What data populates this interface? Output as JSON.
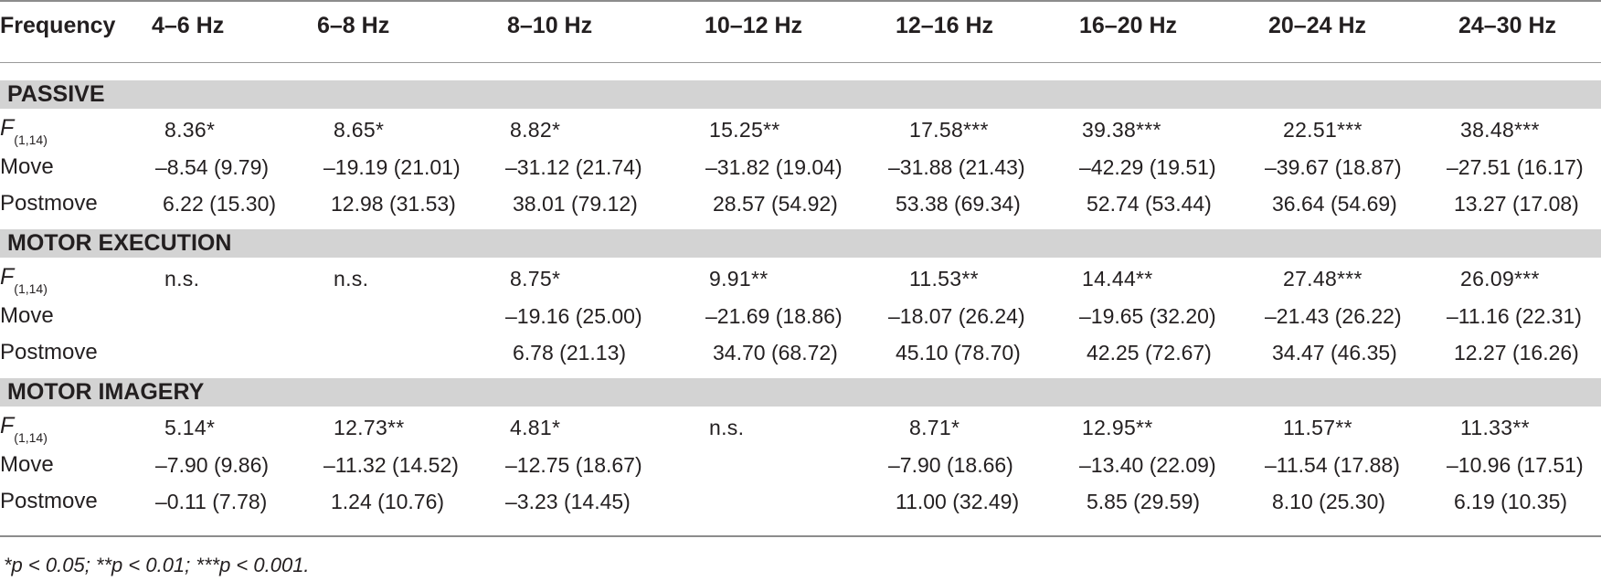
{
  "header": {
    "frequency_label": "Frequency",
    "bands": [
      "4–6 Hz",
      "6–8 Hz",
      "8–10 Hz",
      "10–12 Hz",
      "12–16 Hz",
      "16–20 Hz",
      "20–24 Hz",
      "24–30 Hz"
    ]
  },
  "row_labels": {
    "f_letter": "F",
    "f_subscript": "(1,14)",
    "move": "Move",
    "postmove": "Postmove"
  },
  "sections": [
    {
      "name": "PASSIVE",
      "f": [
        "8.36*",
        "8.65*",
        "8.82*",
        "15.25**",
        "17.58***",
        "39.38***",
        "22.51***",
        "38.48***"
      ],
      "move": [
        "–8.54 (9.79)",
        "–19.19 (21.01)",
        "–31.12 (21.74)",
        "–31.82 (19.04)",
        "–31.88 (21.43)",
        "–42.29 (19.51)",
        "–39.67 (18.87)",
        "–27.51 (16.17)"
      ],
      "postmove": [
        "6.22 (15.30)",
        "12.98 (31.53)",
        "38.01 (79.12)",
        "28.57 (54.92)",
        "53.38 (69.34)",
        "52.74 (53.44)",
        "36.64 (54.69)",
        "13.27 (17.08)"
      ]
    },
    {
      "name": "MOTOR EXECUTION",
      "f": [
        "n.s.",
        "n.s.",
        "8.75*",
        "9.91**",
        "11.53**",
        "14.44**",
        "27.48***",
        "26.09***"
      ],
      "move": [
        "",
        "",
        "–19.16 (25.00)",
        "–21.69 (18.86)",
        "–18.07 (26.24)",
        "–19.65 (32.20)",
        "–21.43 (26.22)",
        "–11.16 (22.31)"
      ],
      "postmove": [
        "",
        "",
        "6.78 (21.13)",
        "34.70 (68.72)",
        "45.10 (78.70)",
        "42.25 (72.67)",
        "34.47 (46.35)",
        "12.27 (16.26)"
      ]
    },
    {
      "name": "MOTOR IMAGERY",
      "f": [
        "5.14*",
        "12.73**",
        "4.81*",
        "n.s.",
        "8.71*",
        "12.95**",
        "11.57**",
        "11.33**"
      ],
      "move": [
        "–7.90 (9.86)",
        "–11.32 (14.52)",
        "–12.75 (18.67)",
        "",
        "–7.90 (18.66)",
        "–13.40 (22.09)",
        "–11.54 (17.88)",
        "–10.96 (17.51)"
      ],
      "postmove": [
        "–0.11 (7.78)",
        "1.24 (10.76)",
        "–3.23 (14.45)",
        "",
        "11.00 (32.49)",
        "5.85 (29.59)",
        "8.10 (25.30)",
        "6.19 (10.35)"
      ]
    }
  ],
  "footnote": "*p < 0.05; **p < 0.01; ***p < 0.001."
}
